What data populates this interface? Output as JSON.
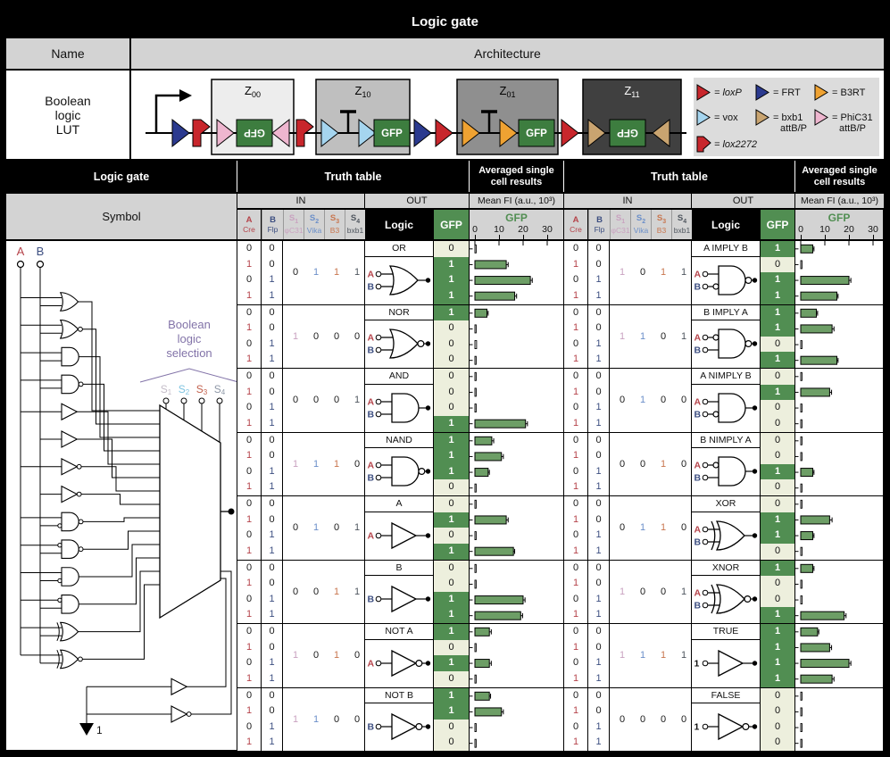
{
  "title": "Logic gate",
  "name_header": "Name",
  "architecture_header": "Architecture",
  "lut_name": "Boolean\nlogic\nLUT",
  "architecture": {
    "gfp": "GFP",
    "modules": [
      {
        "name": "Z",
        "sub": "00",
        "fill": "#ededed",
        "label_color": "#000"
      },
      {
        "name": "Z",
        "sub": "10",
        "fill": "#bfbfbf",
        "label_color": "#000"
      },
      {
        "name": "Z",
        "sub": "01",
        "fill": "#8f8f8f",
        "label_color": "#000"
      },
      {
        "name": "Z",
        "sub": "11",
        "fill": "#404040",
        "label_color": "#fff"
      }
    ],
    "site_colors": {
      "loxP": "#c8262c",
      "lox2272": "#c8262c",
      "FRT": "#2b3a8f",
      "vox": "#a5d5ef",
      "B3RT": "#efa232",
      "bxb1": "#c9a470",
      "PhiC31": "#eeb6cf"
    },
    "gfp_box_color": "#3d7d3f",
    "legend": [
      {
        "shape": "tri",
        "site": "loxP",
        "label": "= loxP",
        "italic": true,
        "col": 0,
        "row": 0
      },
      {
        "shape": "tri",
        "site": "FRT",
        "label": "= FRT",
        "italic": false,
        "col": 1,
        "row": 0
      },
      {
        "shape": "tri",
        "site": "B3RT",
        "label": "= B3RT",
        "italic": false,
        "col": 2,
        "row": 0
      },
      {
        "shape": "tri",
        "site": "vox",
        "label": "= vox",
        "italic": false,
        "col": 0,
        "row": 1
      },
      {
        "shape": "tri",
        "site": "bxb1",
        "label": "= bxb1\nattB/P",
        "italic": false,
        "col": 1,
        "row": 1
      },
      {
        "shape": "tri",
        "site": "PhiC31",
        "label": "= PhiC31\nattB/P",
        "italic": false,
        "col": 2,
        "row": 1
      },
      {
        "shape": "flag",
        "site": "lox2272",
        "label": "= lox2272",
        "italic": true,
        "col": 0,
        "row": 2
      }
    ]
  },
  "table": {
    "logic_gate": "Logic gate",
    "truth_table": "Truth table",
    "avg_single": "Averaged single cell results",
    "symbol": "Symbol",
    "in_label": "IN",
    "out_label": "OUT",
    "mean_fi": "Mean FI (a.u., 10³)",
    "gfp": "GFP",
    "logic": "Logic",
    "axis_ticks": [
      "0",
      "10",
      "20",
      "30"
    ],
    "in_cols": [
      {
        "l1": "A",
        "sub": "",
        "l2": "Cre",
        "color": "#b5434a"
      },
      {
        "l1": "B",
        "sub": "",
        "l2": "Flp",
        "color": "#3c4e80"
      },
      {
        "l1": "S",
        "sub": "1",
        "l2": "φC31",
        "color": "#c9a2c0"
      },
      {
        "l1": "S",
        "sub": "2",
        "l2": "Vika",
        "color": "#6b8fc9"
      },
      {
        "l1": "S",
        "sub": "3",
        "l2": "B3",
        "color": "#c8764f"
      },
      {
        "l1": "S",
        "sub": "4",
        "l2": "bxb1",
        "color": "#4e555e"
      }
    ]
  },
  "symbol_panel": {
    "input_a": "A",
    "input_b": "B",
    "selection_label": "Boolean\nlogic\nselection",
    "selection_color": "#8273a8",
    "s_labels": [
      {
        "t": "S",
        "sub": "1",
        "color": "#c4bcc8"
      },
      {
        "t": "S",
        "sub": "2",
        "color": "#7ec3e0"
      },
      {
        "t": "S",
        "sub": "3",
        "color": "#c2604c"
      },
      {
        "t": "S",
        "sub": "4",
        "color": "#8d97a6"
      }
    ],
    "const_one": "1"
  },
  "ab_pattern": {
    "a": [
      "0",
      "1",
      "0",
      "1"
    ],
    "b": [
      "0",
      "0",
      "1",
      "1"
    ]
  },
  "digit_colors": {
    "a_one": "#b5434a",
    "b_one": "#3c4e80",
    "zero": "#1a1a1a",
    "s_ones": [
      "#c9a2c0",
      "#6b8fc9",
      "#c8764f",
      "#4e555e"
    ]
  },
  "colors": {
    "green_cell": "#518e52",
    "pale_cell": "#edefdd",
    "bar_fill": "#6d9e66",
    "label_a": "#b5434a",
    "label_b": "#3c4e80",
    "label_one": "#111111"
  },
  "gates_left": [
    {
      "name": "OR",
      "s": [
        "0",
        "1",
        "1",
        "1"
      ],
      "gfp": [
        0,
        1,
        1,
        1
      ],
      "bars": [
        0.2,
        13,
        23,
        16.5
      ],
      "errs": [
        0.2,
        0.8,
        0.8,
        0.8
      ],
      "sym": {
        "base": "or",
        "ob": false,
        "inputs": [
          "A",
          "B"
        ],
        "ib": []
      }
    },
    {
      "name": "NOR",
      "s": [
        "1",
        "0",
        "0",
        "0"
      ],
      "gfp": [
        1,
        0,
        0,
        0
      ],
      "bars": [
        5,
        0.2,
        0.7,
        0.2
      ],
      "errs": [
        0.5,
        0.2,
        0.2,
        0.2
      ],
      "sym": {
        "base": "or",
        "ob": true,
        "inputs": [
          "A",
          "B"
        ],
        "ib": []
      }
    },
    {
      "name": "AND",
      "s": [
        "0",
        "0",
        "0",
        "1"
      ],
      "gfp": [
        0,
        0,
        0,
        1
      ],
      "bars": [
        0.3,
        0.3,
        0.3,
        21
      ],
      "errs": [
        0.2,
        0.2,
        0.2,
        0.8
      ],
      "sym": {
        "base": "and",
        "ob": false,
        "inputs": [
          "A",
          "B"
        ],
        "ib": []
      }
    },
    {
      "name": "NAND",
      "s": [
        "1",
        "1",
        "1",
        "0"
      ],
      "gfp": [
        1,
        1,
        1,
        0
      ],
      "bars": [
        7,
        11,
        5.5,
        0.5
      ],
      "errs": [
        0.8,
        0.8,
        0.5,
        0.2
      ],
      "sym": {
        "base": "and",
        "ob": true,
        "inputs": [
          "A",
          "B"
        ],
        "ib": []
      }
    },
    {
      "name": "A",
      "s": [
        "0",
        "1",
        "0",
        "1"
      ],
      "gfp": [
        0,
        1,
        0,
        1
      ],
      "bars": [
        0.2,
        13,
        0.3,
        16
      ],
      "errs": [
        0.2,
        0.8,
        0.2,
        0.5
      ],
      "sym": {
        "base": "buf",
        "ob": false,
        "inputs": [
          "A"
        ],
        "ib": []
      }
    },
    {
      "name": "B",
      "s": [
        "0",
        "0",
        "1",
        "1"
      ],
      "gfp": [
        0,
        0,
        1,
        1
      ],
      "bars": [
        0.3,
        0.3,
        20,
        19
      ],
      "errs": [
        0.2,
        0.2,
        0.8,
        0.8
      ],
      "sym": {
        "base": "buf",
        "ob": false,
        "inputs": [
          "B"
        ],
        "ib": []
      }
    },
    {
      "name": "NOT A",
      "s": [
        "1",
        "0",
        "1",
        "0"
      ],
      "gfp": [
        1,
        0,
        1,
        0
      ],
      "bars": [
        6,
        0.4,
        6,
        0.4
      ],
      "errs": [
        0.8,
        0.2,
        0.8,
        0.2
      ],
      "sym": {
        "base": "buf",
        "ob": true,
        "inputs": [
          "A"
        ],
        "ib": []
      }
    },
    {
      "name": "NOT B",
      "s": [
        "1",
        "1",
        "0",
        "0"
      ],
      "gfp": [
        1,
        1,
        0,
        0
      ],
      "bars": [
        6,
        11,
        0.4,
        0.4
      ],
      "errs": [
        0.5,
        0.8,
        0.2,
        0.2
      ],
      "sym": {
        "base": "buf",
        "ob": true,
        "inputs": [
          "B"
        ],
        "ib": []
      }
    }
  ],
  "gates_right": [
    {
      "name": "A IMPLY B",
      "s": [
        "1",
        "0",
        "1",
        "1"
      ],
      "gfp": [
        1,
        0,
        1,
        1
      ],
      "bars": [
        5,
        0.4,
        20,
        15
      ],
      "errs": [
        0.5,
        0.2,
        0.8,
        0.5
      ],
      "sym": {
        "base": "and",
        "ob": true,
        "inputs": [
          "A",
          "B"
        ],
        "ib": [
          "B"
        ]
      }
    },
    {
      "name": "B IMPLY A",
      "s": [
        "1",
        "1",
        "0",
        "1"
      ],
      "gfp": [
        1,
        1,
        0,
        1
      ],
      "bars": [
        6.5,
        13,
        0.5,
        15
      ],
      "errs": [
        0.5,
        0.8,
        0.2,
        0.5
      ],
      "sym": {
        "base": "and",
        "ob": true,
        "inputs": [
          "A",
          "B"
        ],
        "ib": [
          "A"
        ]
      }
    },
    {
      "name": "A NIMPLY B",
      "s": [
        "0",
        "1",
        "0",
        "0"
      ],
      "gfp": [
        0,
        1,
        0,
        0
      ],
      "bars": [
        0.2,
        12,
        0.3,
        0.5
      ],
      "errs": [
        0.2,
        0.8,
        0.2,
        0.2
      ],
      "sym": {
        "base": "and",
        "ob": false,
        "inputs": [
          "A",
          "B"
        ],
        "ib": [
          "B"
        ]
      }
    },
    {
      "name": "B NIMPLY A",
      "s": [
        "0",
        "0",
        "1",
        "0"
      ],
      "gfp": [
        0,
        0,
        1,
        0
      ],
      "bars": [
        0.2,
        0.2,
        5,
        0.5
      ],
      "errs": [
        0.2,
        0.2,
        0.5,
        0.2
      ],
      "sym": {
        "base": "and",
        "ob": false,
        "inputs": [
          "A",
          "B"
        ],
        "ib": [
          "A"
        ]
      }
    },
    {
      "name": "XOR",
      "s": [
        "0",
        "1",
        "1",
        "0"
      ],
      "gfp": [
        0,
        1,
        1,
        0
      ],
      "bars": [
        0.3,
        12,
        5,
        0.6
      ],
      "errs": [
        0.2,
        1,
        0.5,
        0.2
      ],
      "sym": {
        "base": "xor",
        "ob": false,
        "inputs": [
          "A",
          "B"
        ],
        "ib": []
      }
    },
    {
      "name": "XNOR",
      "s": [
        "1",
        "0",
        "0",
        "1"
      ],
      "gfp": [
        1,
        0,
        0,
        1
      ],
      "bars": [
        5,
        0.5,
        0.6,
        18
      ],
      "errs": [
        0.5,
        0.2,
        0.2,
        0.8
      ],
      "sym": {
        "base": "xor",
        "ob": true,
        "inputs": [
          "A",
          "B"
        ],
        "ib": []
      }
    },
    {
      "name": "TRUE",
      "s": [
        "1",
        "1",
        "1",
        "1"
      ],
      "gfp": [
        1,
        1,
        1,
        1
      ],
      "bars": [
        7,
        12,
        20,
        13
      ],
      "errs": [
        0.5,
        0.8,
        0.8,
        0.8
      ],
      "sym": {
        "base": "buf",
        "ob": false,
        "inputs": [
          "1"
        ],
        "ib": []
      }
    },
    {
      "name": "FALSE",
      "s": [
        "0",
        "0",
        "0",
        "0"
      ],
      "gfp": [
        0,
        0,
        0,
        0
      ],
      "bars": [
        0.2,
        0.2,
        0.2,
        0.3
      ],
      "errs": [
        0.2,
        0.2,
        0.2,
        0.2
      ],
      "sym": {
        "base": "buf",
        "ob": true,
        "inputs": [
          "1"
        ],
        "ib": []
      }
    }
  ]
}
